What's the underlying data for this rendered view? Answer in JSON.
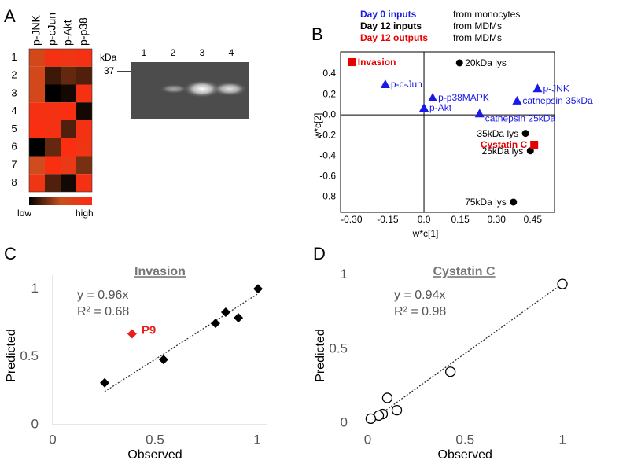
{
  "chart_data": [
    {
      "type": "heatmap",
      "panel": "A",
      "columns": [
        "p-JNK",
        "p-cJun",
        "p-Akt",
        "p-p38"
      ],
      "rows": [
        "1",
        "2",
        "3",
        "4",
        "5",
        "6",
        "7",
        "8"
      ],
      "values": [
        [
          0.6,
          0.9,
          0.85,
          0.9
        ],
        [
          0.6,
          0.15,
          0.25,
          0.2
        ],
        [
          0.6,
          0,
          0.05,
          0.9
        ],
        [
          0.9,
          0.9,
          0.95,
          0.05
        ],
        [
          0.95,
          0.9,
          0.2,
          0.9
        ],
        [
          0,
          0.25,
          0.95,
          0.85
        ],
        [
          0.55,
          0.95,
          0.8,
          0.3
        ],
        [
          0.85,
          0.2,
          0.05,
          0.9
        ]
      ],
      "colormap": [
        "#000000",
        "#c8501e",
        "#ff2a10"
      ],
      "colorbar_labels": [
        "low",
        "high"
      ],
      "blot": {
        "unit": "kDa",
        "marker": 37,
        "lanes": [
          1,
          2,
          3,
          4
        ]
      }
    },
    {
      "type": "scatter-labeled",
      "panel": "B",
      "xlabel": "w*c[1]",
      "ylabel": "w*c[2]",
      "xlim": [
        -0.345,
        0.54
      ],
      "ylim": [
        -0.95,
        0.615
      ],
      "xticks": [
        {
          "value": -0.3,
          "label": "-0.30"
        },
        {
          "value": -0.15,
          "label": "-0.15"
        },
        {
          "value": 0,
          "label": "0.0"
        },
        {
          "value": 0.15,
          "label": "0.15"
        },
        {
          "value": 0.3,
          "label": "0.30"
        },
        {
          "value": 0.45,
          "label": "0.45"
        }
      ],
      "yticks": [
        0.4,
        0.2,
        {
          "value": 0,
          "label": "0.0"
        },
        -0.2,
        -0.4,
        -0.6,
        -0.8
      ],
      "series": [
        {
          "name": "Day 0 inputs",
          "source": "from monocytes",
          "color": "#1a1ae6",
          "marker": "triangle",
          "labels": [
            "p-c-Jun",
            "p-p38MAPK",
            "p-Akt",
            "p-JNK",
            "cathepsin 35kDa",
            "cathepsin 25kDa"
          ],
          "x": [
            -0.16,
            0.036,
            0.0,
            0.47,
            0.385,
            0.23
          ],
          "y": [
            0.3,
            0.17,
            0.07,
            0.26,
            0.14,
            0.015
          ]
        },
        {
          "name": "Day 12 inputs",
          "source": "from MDMs",
          "color": "#000000",
          "marker": "circle",
          "labels": [
            "20kDa lys",
            "35kDa lys",
            "25kDa lys",
            "75kDa lys"
          ],
          "x": [
            0.147,
            0.42,
            0.44,
            0.37
          ],
          "y": [
            0.508,
            -0.18,
            -0.35,
            -0.85
          ]
        },
        {
          "name": "Day 12 outputs",
          "source": "from MDMs",
          "color": "#e60000",
          "marker": "square",
          "labels": [
            "Invasion",
            "Cystatin C"
          ],
          "x": [
            -0.297,
            0.456
          ],
          "y": [
            0.515,
            -0.29
          ]
        }
      ]
    },
    {
      "type": "regression",
      "panel": "C",
      "title": "Invasion",
      "xlabel": "Observed",
      "ylabel": "Predicted",
      "equation": "y = 0.96x",
      "r2": "R² = 0.68",
      "slope": 0.96,
      "xlim": [
        0,
        1.05
      ],
      "ylim": [
        0,
        1.1
      ],
      "xticks": [
        0,
        0.5,
        1
      ],
      "yticks": [
        0,
        0.5,
        1
      ],
      "axes": true,
      "marker": "diamond",
      "color": "#000000",
      "x": [
        0.254,
        0.542,
        0.796,
        0.846,
        0.908,
        1.004
      ],
      "y": [
        0.308,
        0.479,
        0.746,
        0.828,
        0.787,
        1.0
      ],
      "highlight": {
        "label": "P9",
        "x": 0.388,
        "y": 0.669,
        "color": "#e62020"
      }
    },
    {
      "type": "regression",
      "panel": "D",
      "title": "Cystatin C",
      "xlabel": "Observed",
      "ylabel": "Predicted",
      "equation": "y = 0.94x",
      "r2": "R² = 0.98",
      "slope": 0.94,
      "xlim": [
        -0.03,
        1.02
      ],
      "ylim": [
        -0.02,
        1.05
      ],
      "xticks": [
        0,
        0.5,
        1
      ],
      "yticks": [
        0,
        0.5,
        1
      ],
      "axes": false,
      "marker": "open-circle",
      "color": "#000000",
      "x": [
        1.0,
        0.425,
        0.101,
        0.15,
        0.077,
        0.057,
        0.016
      ],
      "y": [
        0.938,
        0.347,
        0.171,
        0.088,
        0.062,
        0.052,
        0.031
      ]
    }
  ]
}
